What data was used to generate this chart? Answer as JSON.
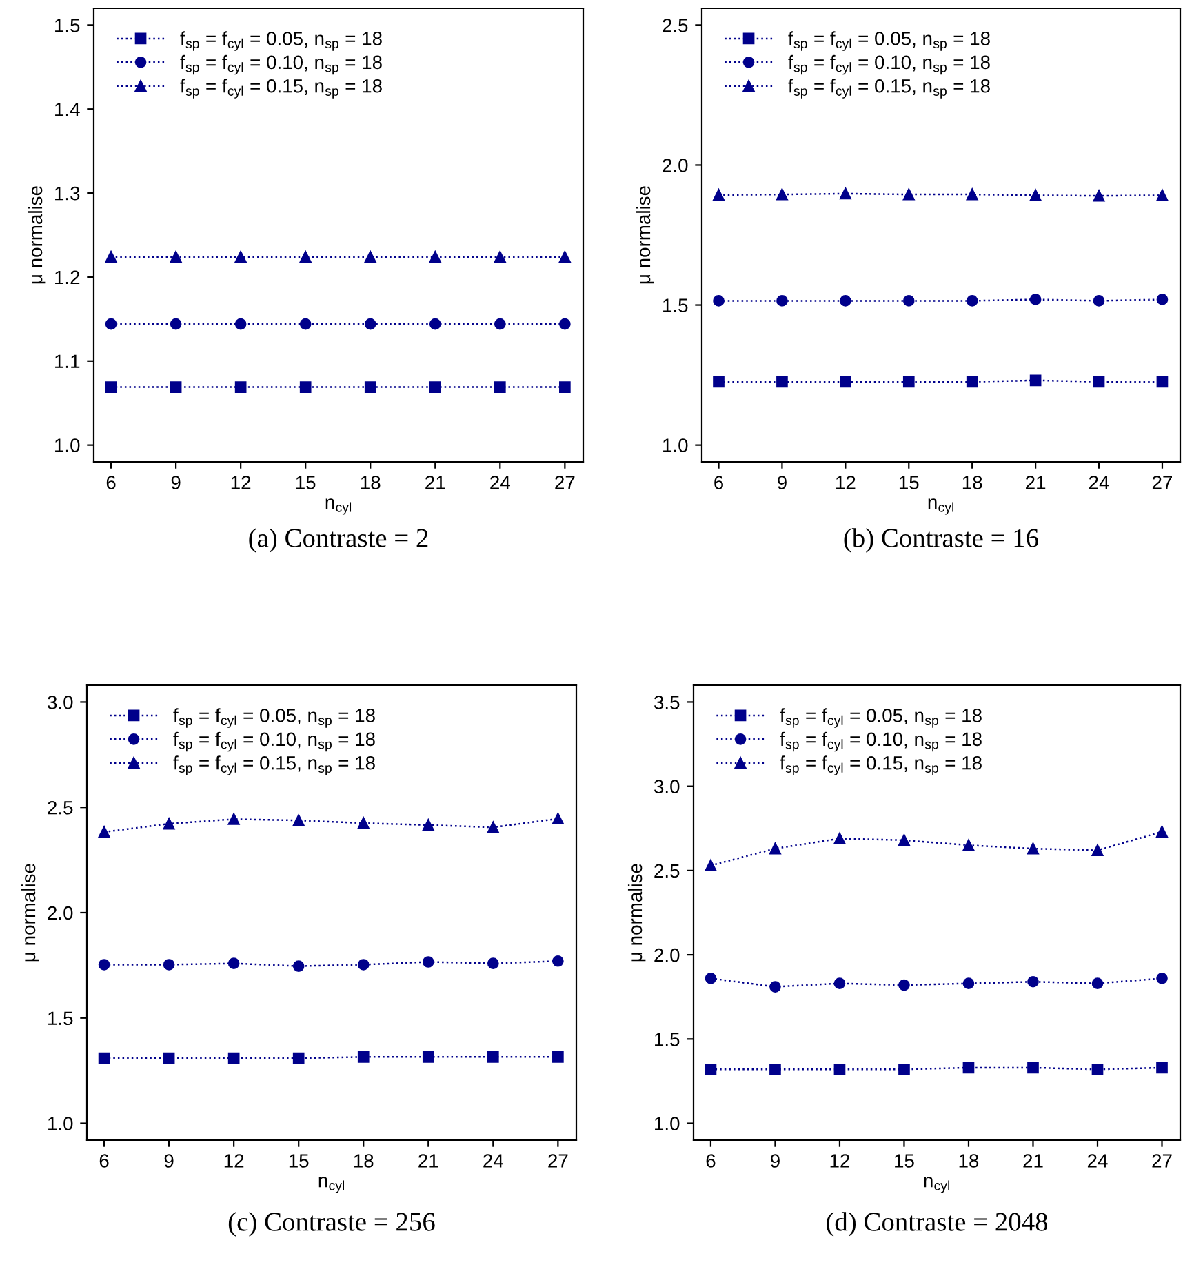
{
  "chart_data": [
    {
      "type": "line",
      "title": "(a) Contraste = 2",
      "xlabel": "n$_{cyl}$",
      "ylabel": "μ normalise",
      "x": [
        6,
        9,
        12,
        15,
        18,
        21,
        24,
        27
      ],
      "xlim": [
        5.2,
        27.85
      ],
      "xticks": [
        6,
        9,
        12,
        15,
        18,
        21,
        24,
        27
      ],
      "ylim": [
        0.98,
        1.52
      ],
      "yticks": [
        {
          "value": 1,
          "label": "1.0"
        },
        1.1,
        1.2,
        1.3,
        1.4,
        1.5
      ],
      "legend": "top left",
      "line_style": "dotted",
      "grid": false,
      "series": [
        {
          "name": "f$_{sp}$ = f$_{cyl}$ = 0.05, n$_{sp}$ = 18",
          "color": "#00008b",
          "marker": "square",
          "values": [
            1.069,
            1.069,
            1.069,
            1.069,
            1.069,
            1.069,
            1.069,
            1.069
          ]
        },
        {
          "name": "f$_{sp}$ = f$_{cyl}$ = 0.10, n$_{sp}$ = 18",
          "color": "#00008b",
          "marker": "circle",
          "values": [
            1.144,
            1.144,
            1.144,
            1.144,
            1.144,
            1.144,
            1.144,
            1.144
          ]
        },
        {
          "name": "f$_{sp}$ = f$_{cyl}$ = 0.15, n$_{sp}$ = 18",
          "color": "#00008b",
          "marker": "triangle",
          "values": [
            1.224,
            1.224,
            1.224,
            1.224,
            1.224,
            1.224,
            1.224,
            1.224
          ]
        }
      ]
    },
    {
      "type": "line",
      "title": "(b) Contraste = 16",
      "xlabel": "n$_{cyl}$",
      "ylabel": "μ normalise",
      "x": [
        6,
        9,
        12,
        15,
        18,
        21,
        24,
        27
      ],
      "xlim": [
        5.2,
        27.85
      ],
      "xticks": [
        6,
        9,
        12,
        15,
        18,
        21,
        24,
        27
      ],
      "ylim": [
        0.94,
        2.56
      ],
      "yticks": [
        {
          "value": 1,
          "label": "1.0"
        },
        1.5,
        {
          "value": 2,
          "label": "2.0"
        },
        2.5
      ],
      "legend": "top left",
      "line_style": "dotted",
      "grid": false,
      "series": [
        {
          "name": "f$_{sp}$ = f$_{cyl}$ = 0.05, n$_{sp}$ = 18",
          "color": "#00008b",
          "marker": "square",
          "values": [
            1.226,
            1.226,
            1.226,
            1.226,
            1.226,
            1.231,
            1.226,
            1.226
          ]
        },
        {
          "name": "f$_{sp}$ = f$_{cyl}$ = 0.10, n$_{sp}$ = 18",
          "color": "#00008b",
          "marker": "circle",
          "values": [
            1.515,
            1.515,
            1.515,
            1.515,
            1.515,
            1.52,
            1.515,
            1.52
          ]
        },
        {
          "name": "f$_{sp}$ = f$_{cyl}$ = 0.15, n$_{sp}$ = 18",
          "color": "#00008b",
          "marker": "triangle",
          "values": [
            1.893,
            1.895,
            1.898,
            1.895,
            1.895,
            1.892,
            1.89,
            1.892
          ]
        }
      ]
    },
    {
      "type": "line",
      "title": "(c) Contraste = 256",
      "xlabel": "n$_{cyl}$",
      "ylabel": "μ normalise",
      "x": [
        6,
        9,
        12,
        15,
        18,
        21,
        24,
        27
      ],
      "xlim": [
        5.2,
        27.85
      ],
      "xticks": [
        6,
        9,
        12,
        15,
        18,
        21,
        24,
        27
      ],
      "ylim": [
        0.92,
        3.08
      ],
      "yticks": [
        {
          "value": 1,
          "label": "1.0"
        },
        1.5,
        {
          "value": 2,
          "label": "2.0"
        },
        2.5,
        {
          "value": 3,
          "label": "3.0"
        }
      ],
      "legend": "top left",
      "line_style": "dotted",
      "grid": false,
      "series": [
        {
          "name": "f$_{sp}$ = f$_{cyl}$ = 0.05, n$_{sp}$ = 18",
          "color": "#00008b",
          "marker": "square",
          "values": [
            1.309,
            1.309,
            1.309,
            1.309,
            1.315,
            1.315,
            1.315,
            1.315
          ]
        },
        {
          "name": "f$_{sp}$ = f$_{cyl}$ = 0.10, n$_{sp}$ = 18",
          "color": "#00008b",
          "marker": "circle",
          "values": [
            1.753,
            1.753,
            1.759,
            1.746,
            1.753,
            1.766,
            1.759,
            1.77
          ]
        },
        {
          "name": "f$_{sp}$ = f$_{cyl}$ = 0.15, n$_{sp}$ = 18",
          "color": "#00008b",
          "marker": "triangle",
          "values": [
            2.383,
            2.422,
            2.444,
            2.438,
            2.425,
            2.416,
            2.405,
            2.446
          ]
        }
      ]
    },
    {
      "type": "line",
      "title": "(d) Contraste = 2048",
      "xlabel": "n$_{cyl}$",
      "ylabel": "μ normalise",
      "x": [
        6,
        9,
        12,
        15,
        18,
        21,
        24,
        27
      ],
      "xlim": [
        5.2,
        27.85
      ],
      "xticks": [
        6,
        9,
        12,
        15,
        18,
        21,
        24,
        27
      ],
      "ylim": [
        0.9,
        3.6
      ],
      "yticks": [
        {
          "value": 1,
          "label": "1.0"
        },
        1.5,
        {
          "value": 2,
          "label": "2.0"
        },
        2.5,
        {
          "value": 3,
          "label": "3.0"
        },
        3.5
      ],
      "legend": "top left",
      "line_style": "dotted",
      "grid": false,
      "series": [
        {
          "name": "f$_{sp}$ = f$_{cyl}$ = 0.05, n$_{sp}$ = 18",
          "color": "#00008b",
          "marker": "square",
          "values": [
            1.32,
            1.32,
            1.32,
            1.32,
            1.33,
            1.33,
            1.32,
            1.33
          ]
        },
        {
          "name": "f$_{sp}$ = f$_{cyl}$ = 0.10, n$_{sp}$ = 18",
          "color": "#00008b",
          "marker": "circle",
          "values": [
            1.86,
            1.81,
            1.83,
            1.82,
            1.83,
            1.84,
            1.83,
            1.86
          ]
        },
        {
          "name": "f$_{sp}$ = f$_{cyl}$ = 0.15, n$_{sp}$ = 18",
          "color": "#00008b",
          "marker": "triangle",
          "values": [
            2.53,
            2.63,
            2.69,
            2.68,
            2.65,
            2.63,
            2.62,
            2.73
          ]
        }
      ]
    }
  ]
}
